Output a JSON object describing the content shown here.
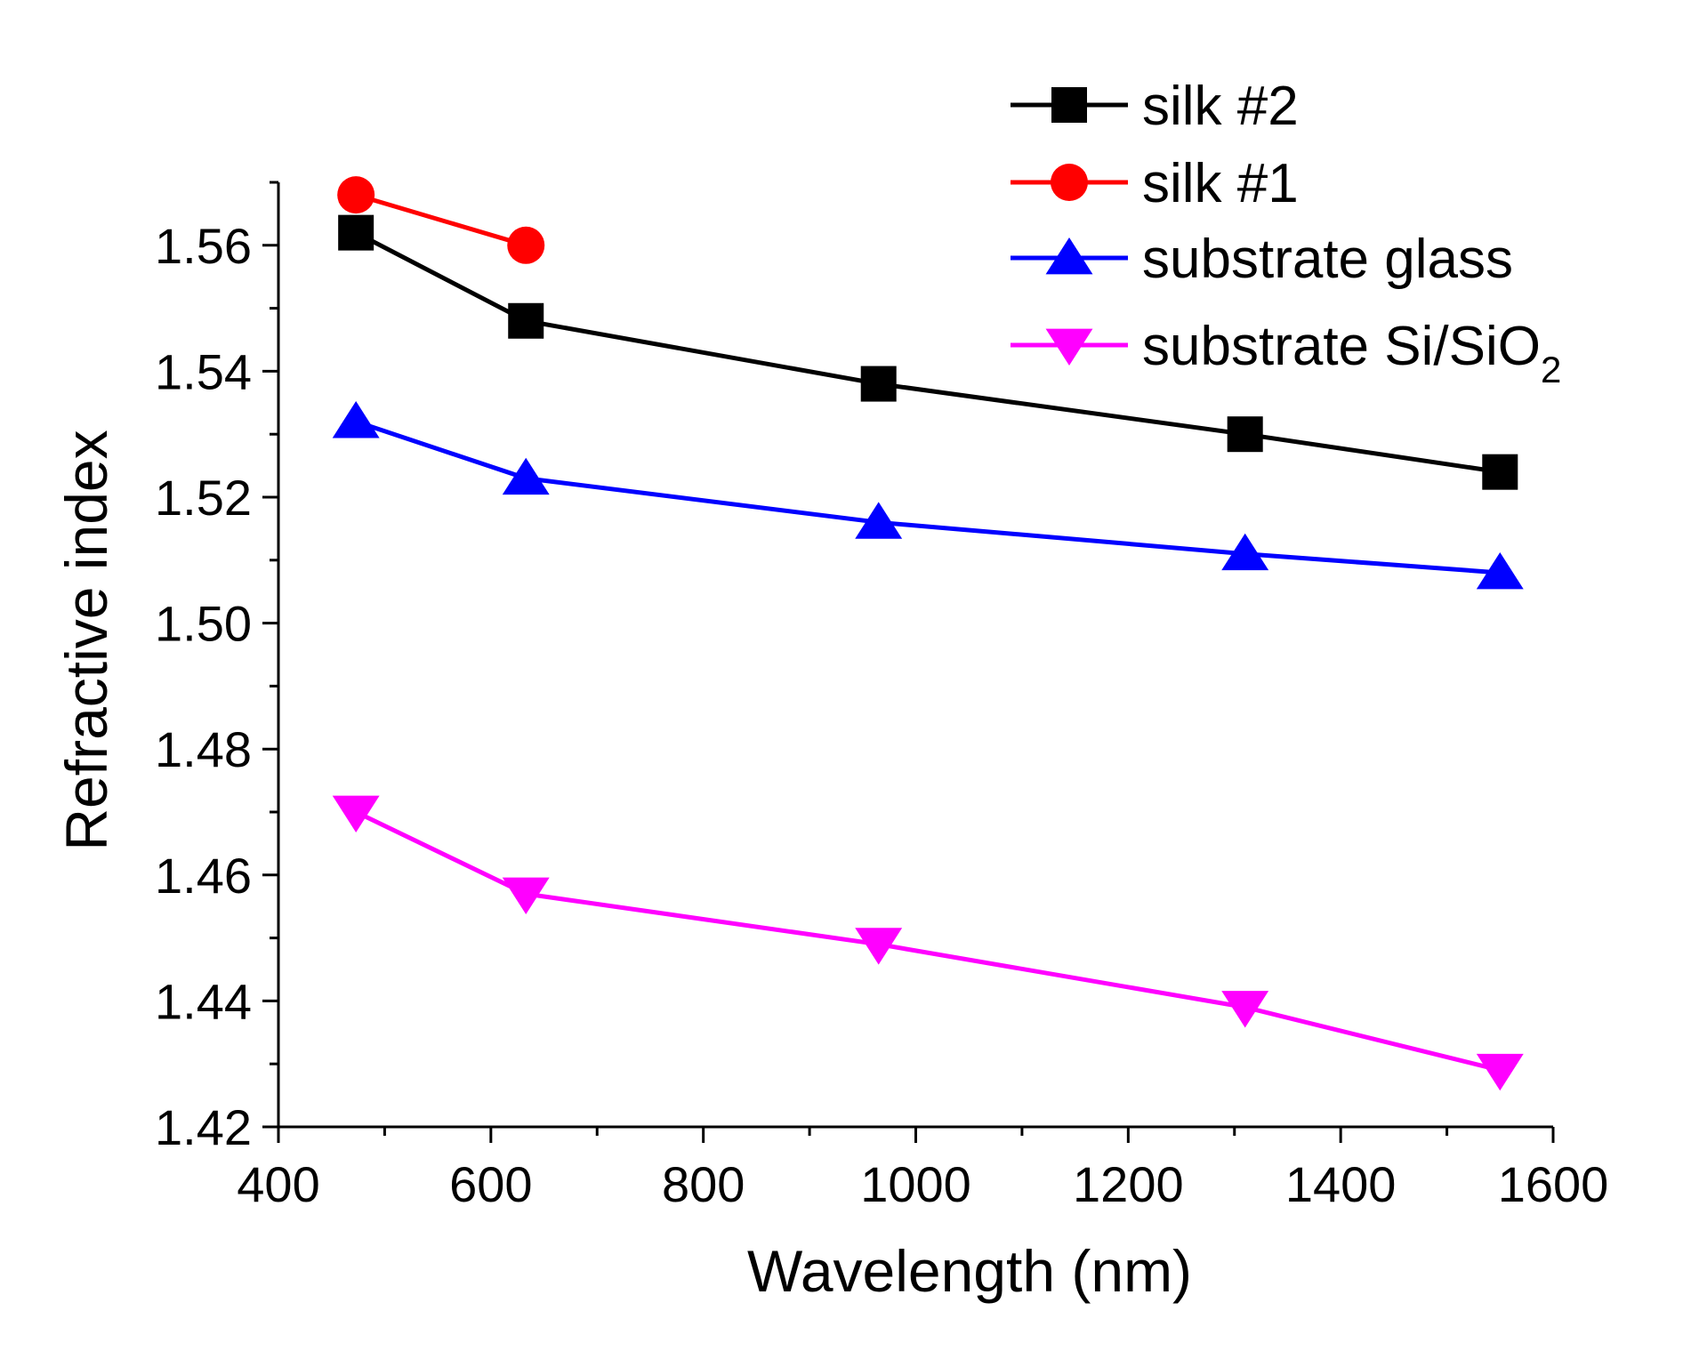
{
  "chart_data": {
    "type": "line",
    "title": "",
    "xlabel": "Wavelength (nm)",
    "ylabel": "Refractive index",
    "xlim": [
      400,
      1600
    ],
    "ylim": [
      1.42,
      1.57
    ],
    "x_ticks": [
      400,
      600,
      800,
      1000,
      1200,
      1400,
      1600
    ],
    "x_tick_labels": [
      "400",
      "600",
      "800",
      "1000",
      "1200",
      "1400",
      "1600"
    ],
    "y_ticks": [
      1.42,
      1.44,
      1.46,
      1.48,
      1.5,
      1.52,
      1.54,
      1.56
    ],
    "y_tick_labels": [
      "1.42",
      "1.44",
      "1.46",
      "1.48",
      "1.50",
      "1.52",
      "1.54",
      "1.56"
    ],
    "grid": false,
    "legend_position": "top-right",
    "series": [
      {
        "name": "silk #2",
        "legend_label": "silk #2",
        "color": "#000000",
        "marker": "square",
        "x": [
          473,
          633,
          965,
          1310,
          1550
        ],
        "y": [
          1.562,
          1.548,
          1.538,
          1.53,
          1.524
        ]
      },
      {
        "name": "silk #1",
        "legend_label": "silk #1",
        "color": "#ff0000",
        "marker": "circle",
        "x": [
          473,
          633
        ],
        "y": [
          1.568,
          1.56
        ]
      },
      {
        "name": "substrate glass",
        "legend_label": "substrate glass",
        "color": "#0000ff",
        "marker": "triangle-up",
        "x": [
          473,
          633,
          965,
          1310,
          1550
        ],
        "y": [
          1.532,
          1.523,
          1.516,
          1.511,
          1.508
        ]
      },
      {
        "name": "substrate Si/SiO2",
        "legend_label": "substrate Si/SiO",
        "legend_subscript": "2",
        "color": "#ff00ff",
        "marker": "triangle-down",
        "x": [
          473,
          633,
          965,
          1310,
          1550
        ],
        "y": [
          1.47,
          1.457,
          1.449,
          1.439,
          1.429
        ]
      }
    ]
  }
}
